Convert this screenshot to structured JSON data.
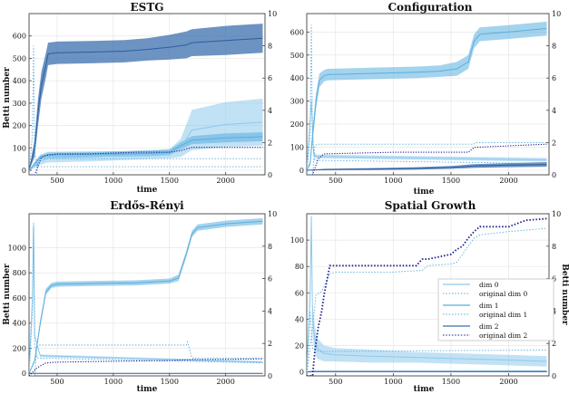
{
  "colors": {
    "dim0": "#8ec9ec",
    "dim1": "#5aaedf",
    "dim2": "#3b6fae",
    "origDark": "#1a1a8c",
    "grid": "#e6e6e6",
    "axis": "#444444"
  },
  "chart_data": [
    {
      "type": "line",
      "title": "ESTG",
      "xlabel": "time",
      "ylabel": "Betti number",
      "ylabel_right": "",
      "xlim": [
        250,
        2350
      ],
      "ylim": [
        -20,
        700
      ],
      "y2lim": [
        0,
        10
      ],
      "xticks": [
        500,
        1000,
        1500,
        2000
      ],
      "yticks": [
        0,
        100,
        200,
        300,
        400,
        500,
        600
      ],
      "y2ticks": [
        0,
        2,
        4,
        6,
        8,
        10
      ],
      "series": [
        {
          "name": "dim 0",
          "color": "#8ec9ec",
          "axis": "left",
          "x": [
            250,
            300,
            350,
            420,
            800,
            1300,
            1500,
            1600,
            1700,
            2000,
            2330
          ],
          "y": [
            0,
            20,
            40,
            55,
            60,
            70,
            75,
            100,
            180,
            205,
            215
          ],
          "band": [
            0,
            10,
            15,
            20,
            20,
            20,
            20,
            40,
            90,
            100,
            105
          ]
        },
        {
          "name": "dim 1",
          "color": "#5aaedf",
          "axis": "left",
          "x": [
            250,
            300,
            350,
            420,
            800,
            1300,
            1500,
            1600,
            1700,
            2000,
            2330
          ],
          "y": [
            0,
            30,
            60,
            70,
            72,
            75,
            80,
            110,
            135,
            145,
            150
          ],
          "band": [
            0,
            8,
            10,
            12,
            12,
            12,
            12,
            15,
            18,
            20,
            20
          ]
        },
        {
          "name": "dim 2",
          "color": "#3b6fae",
          "axis": "left",
          "x": [
            250,
            300,
            330,
            360,
            400,
            420,
            500,
            800,
            1100,
            1300,
            1500,
            1650,
            1700,
            2000,
            2330
          ],
          "y": [
            0,
            100,
            260,
            380,
            470,
            520,
            525,
            528,
            532,
            540,
            550,
            560,
            570,
            580,
            590
          ],
          "band": [
            0,
            40,
            60,
            60,
            55,
            50,
            50,
            50,
            50,
            50,
            55,
            60,
            60,
            65,
            65
          ]
        },
        {
          "name": "original dim 0",
          "color": "#5aaedf",
          "axis": "right",
          "x": [
            250,
            280,
            290,
            300,
            320,
            2330
          ],
          "y": [
            0,
            2.5,
            8,
            1.5,
            0.5,
            0.5
          ]
        },
        {
          "name": "original dim 1",
          "color": "#5aaedf",
          "axis": "right",
          "x": [
            250,
            320,
            330,
            2330
          ],
          "y": [
            0,
            0,
            1,
            1
          ]
        },
        {
          "name": "original dim 2",
          "color": "#1a1a8c",
          "axis": "right",
          "x": [
            250,
            300,
            360,
            400,
            500,
            800,
            1200,
            1500,
            1600,
            1700,
            2330
          ],
          "y": [
            0,
            0,
            1.1,
            1.2,
            1.3,
            1.3,
            1.4,
            1.4,
            1.5,
            1.7,
            1.7
          ]
        }
      ]
    },
    {
      "type": "line",
      "title": "Configuration",
      "xlabel": "time",
      "ylabel": "",
      "ylabel_right": "",
      "xlim": [
        250,
        2350
      ],
      "ylim": [
        -20,
        680
      ],
      "y2lim": [
        0,
        10
      ],
      "xticks": [
        500,
        1000,
        1500,
        2000
      ],
      "yticks": [
        0,
        100,
        200,
        300,
        400,
        500,
        600
      ],
      "y2ticks": [
        0,
        2,
        4,
        6,
        8,
        10
      ],
      "series": [
        {
          "name": "dim 0",
          "color": "#8ec9ec",
          "axis": "left",
          "x": [
            250,
            290,
            310,
            330,
            2330
          ],
          "y": [
            0,
            300,
            70,
            60,
            45
          ],
          "band": [
            0,
            20,
            10,
            8,
            8
          ]
        },
        {
          "name": "dim 1",
          "color": "#5aaedf",
          "axis": "left",
          "x": [
            250,
            280,
            300,
            330,
            360,
            400,
            430,
            800,
            1200,
            1400,
            1550,
            1650,
            1700,
            1750,
            2000,
            2330
          ],
          "y": [
            0,
            30,
            150,
            300,
            390,
            410,
            415,
            420,
            425,
            430,
            440,
            470,
            560,
            590,
            600,
            615
          ],
          "band": [
            0,
            10,
            30,
            35,
            30,
            25,
            25,
            25,
            25,
            25,
            30,
            30,
            30,
            30,
            30,
            30
          ]
        },
        {
          "name": "dim 2",
          "color": "#3b6fae",
          "axis": "left",
          "x": [
            250,
            400,
            800,
            1200,
            1500,
            1700,
            2000,
            2330
          ],
          "y": [
            0,
            3,
            5,
            8,
            12,
            18,
            22,
            25
          ],
          "band": [
            0,
            3,
            4,
            5,
            6,
            8,
            9,
            10
          ]
        },
        {
          "name": "original dim 0",
          "color": "#5aaedf",
          "axis": "right",
          "x": [
            250,
            280,
            290,
            300,
            320,
            2330
          ],
          "y": [
            0,
            2.5,
            9.3,
            2,
            0.9,
            0.7
          ]
        },
        {
          "name": "original dim 1",
          "color": "#5aaedf",
          "axis": "right",
          "x": [
            250,
            300,
            320,
            340,
            1700,
            1710,
            2330
          ],
          "y": [
            0,
            0,
            1.8,
            1.9,
            1.9,
            2,
            2
          ]
        },
        {
          "name": "original dim 2",
          "color": "#1a1a8c",
          "axis": "right",
          "x": [
            250,
            300,
            350,
            400,
            1000,
            1650,
            1700,
            2000,
            2330
          ],
          "y": [
            0,
            0,
            1,
            1.3,
            1.4,
            1.4,
            1.7,
            1.8,
            1.9
          ]
        }
      ]
    },
    {
      "type": "line",
      "title": "Erdős-Rényi",
      "xlabel": "time",
      "ylabel": "Betti number",
      "ylabel_right": "",
      "xlim": [
        250,
        2350
      ],
      "ylim": [
        -20,
        1270
      ],
      "y2lim": [
        0,
        10
      ],
      "xticks": [
        500,
        1000,
        1500,
        2000
      ],
      "yticks": [
        0,
        200,
        400,
        600,
        800,
        1000
      ],
      "y2ticks": [
        0,
        2,
        4,
        6,
        8,
        10
      ],
      "series": [
        {
          "name": "dim 0",
          "color": "#8ec9ec",
          "axis": "left",
          "x": [
            250,
            280,
            290,
            300,
            350,
            2330
          ],
          "y": [
            0,
            600,
            1200,
            300,
            140,
            90
          ],
          "band": [
            0,
            20,
            20,
            10,
            10,
            8
          ]
        },
        {
          "name": "dim 1",
          "color": "#5aaedf",
          "axis": "left",
          "x": [
            250,
            300,
            350,
            400,
            450,
            500,
            800,
            1200,
            1500,
            1580,
            1650,
            1700,
            1750,
            2000,
            2330
          ],
          "y": [
            0,
            100,
            400,
            650,
            700,
            710,
            715,
            720,
            735,
            760,
            950,
            1110,
            1160,
            1190,
            1210
          ],
          "band": [
            0,
            15,
            30,
            25,
            20,
            20,
            20,
            20,
            20,
            25,
            25,
            25,
            25,
            25,
            25
          ]
        },
        {
          "name": "dim 2",
          "color": "#3b6fae",
          "axis": "left",
          "x": [
            250,
            2330
          ],
          "y": [
            0,
            0
          ],
          "band": [
            0,
            0
          ]
        },
        {
          "name": "original dim 0",
          "color": "#5aaedf",
          "axis": "right",
          "x": [
            250,
            280,
            290,
            300,
            320,
            2330
          ],
          "y": [
            0,
            4,
            9.2,
            2,
            1.1,
            0.8
          ]
        },
        {
          "name": "original dim 1",
          "color": "#5aaedf",
          "axis": "right",
          "x": [
            250,
            300,
            320,
            1650,
            1660,
            1700,
            2330
          ],
          "y": [
            0,
            0,
            1.9,
            1.9,
            2.1,
            1.1,
            1.1
          ]
        },
        {
          "name": "original dim 2",
          "color": "#1a1a8c",
          "axis": "right",
          "x": [
            250,
            320,
            400,
            500,
            1000,
            1500,
            1700,
            2330
          ],
          "y": [
            0,
            0.5,
            0.8,
            0.85,
            0.9,
            0.95,
            1.0,
            1.05
          ]
        }
      ]
    },
    {
      "type": "line",
      "title": "Spatial Growth",
      "xlabel": "time",
      "ylabel": "",
      "ylabel_right": "Betti number",
      "xlim": [
        250,
        2350
      ],
      "ylim": [
        -3,
        120
      ],
      "y2lim": [
        0,
        10
      ],
      "xticks": [
        500,
        1000,
        1500,
        2000
      ],
      "yticks": [
        0,
        20,
        40,
        60,
        80,
        100
      ],
      "y2ticks": [
        0,
        2,
        4,
        6,
        8,
        10
      ],
      "series": [
        {
          "name": "dim 0",
          "color": "#8ec9ec",
          "axis": "left",
          "x": [
            250,
            280,
            290,
            300,
            320,
            340,
            400,
            500,
            800,
            1200,
            1600,
            2000,
            2330
          ],
          "y": [
            0,
            60,
            118,
            40,
            25,
            18,
            14,
            13,
            12,
            11,
            10,
            9,
            8
          ],
          "band": [
            0,
            10,
            8,
            12,
            10,
            8,
            6,
            5,
            5,
            4,
            4,
            4,
            4
          ]
        },
        {
          "name": "dim 1",
          "color": "#5aaedf",
          "axis": "left",
          "x": [
            250,
            300,
            2330
          ],
          "y": [
            0,
            0.5,
            0.6
          ],
          "band": [
            0,
            0.3,
            0.3
          ]
        },
        {
          "name": "dim 2",
          "color": "#3b6fae",
          "axis": "left",
          "x": [
            250,
            300,
            2330
          ],
          "y": [
            0,
            0.2,
            0.2
          ],
          "band": [
            0,
            0.2,
            0.2
          ]
        },
        {
          "name": "original dim 0",
          "color": "#5aaedf",
          "axis": "right",
          "x": [
            250,
            280,
            300,
            330,
            360,
            2330
          ],
          "y": [
            0,
            4,
            1.7,
            1.6,
            1.5,
            1.6
          ]
        },
        {
          "name": "original dim 1",
          "color": "#5aaedf",
          "axis": "right",
          "x": [
            250,
            300,
            330,
            380,
            450,
            500,
            1000,
            1250,
            1300,
            1500,
            1550,
            1650,
            1700,
            1750,
            2000,
            2330
          ],
          "y": [
            0,
            3,
            5,
            5.2,
            6.3,
            6.4,
            6.4,
            6.5,
            6.8,
            6.9,
            7,
            8,
            8.5,
            8.7,
            8.9,
            9.1
          ]
        },
        {
          "name": "original dim 2",
          "color": "#1a1a8c",
          "axis": "right",
          "x": [
            250,
            300,
            320,
            350,
            380,
            400,
            420,
            450,
            500,
            800,
            1200,
            1250,
            1300,
            1500,
            1550,
            1600,
            1650,
            1700,
            1750,
            2000,
            2150,
            2330
          ],
          "y": [
            0,
            0,
            1.5,
            3,
            4,
            5,
            5.7,
            6.8,
            6.8,
            6.8,
            6.8,
            7.2,
            7.2,
            7.5,
            7.8,
            8,
            8.5,
            8.9,
            9.2,
            9.2,
            9.6,
            9.7
          ],
          "dots": true
        }
      ]
    }
  ],
  "legend": {
    "placement": "lower-right of Spatial Growth",
    "items": [
      {
        "label": "dim 0",
        "color": "#8ec9ec",
        "style": "solid"
      },
      {
        "label": "original dim 0",
        "color": "#5aaedf",
        "style": "dotted"
      },
      {
        "label": "dim 1",
        "color": "#5aaedf",
        "style": "solid"
      },
      {
        "label": "original dim 1",
        "color": "#5aaedf",
        "style": "dotted"
      },
      {
        "label": "dim 2",
        "color": "#3b6fae",
        "style": "solid"
      },
      {
        "label": "original dim 2",
        "color": "#1a1a8c",
        "style": "dotted"
      }
    ]
  }
}
